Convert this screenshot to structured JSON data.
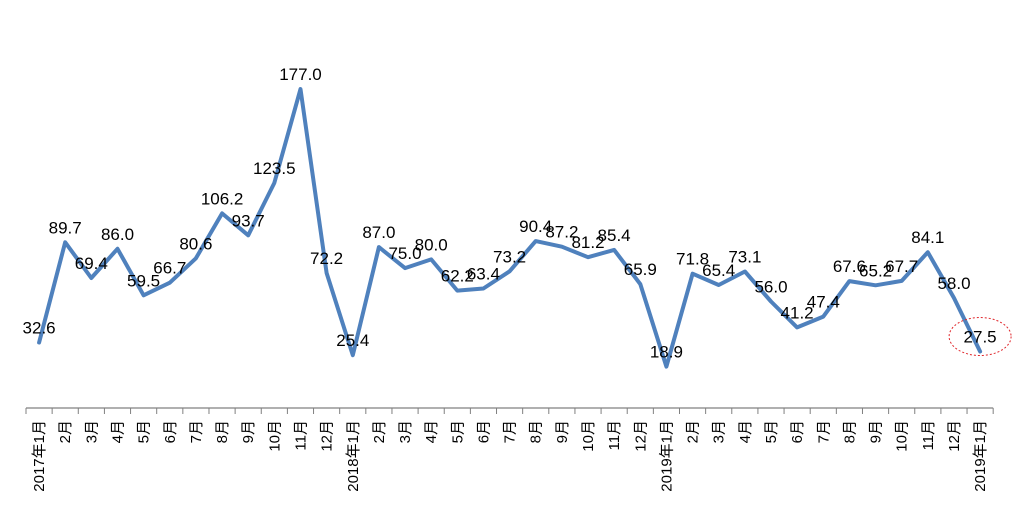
{
  "chart_data": {
    "type": "line",
    "categories": [
      "2017年1月",
      "2月",
      "3月",
      "4月",
      "5月",
      "6月",
      "7月",
      "8月",
      "9月",
      "10月",
      "11月",
      "12月",
      "2018年1月",
      "2月",
      "3月",
      "4月",
      "5月",
      "6月",
      "7月",
      "8月",
      "9月",
      "10月",
      "11月",
      "12月",
      "2019年1月",
      "2月",
      "3月",
      "4月",
      "5月",
      "6月",
      "7月",
      "8月",
      "9月",
      "10月",
      "11月",
      "12月",
      "2019年1月"
    ],
    "series": [
      {
        "values": [
          32.6,
          89.7,
          69.4,
          86.0,
          59.5,
          66.7,
          80.6,
          106.2,
          93.7,
          123.5,
          177.0,
          72.2,
          25.4,
          87.0,
          75.0,
          80.0,
          62.2,
          63.4,
          73.2,
          90.4,
          87.2,
          81.2,
          85.4,
          65.9,
          18.9,
          71.8,
          65.4,
          73.1,
          56.0,
          41.2,
          47.4,
          67.6,
          65.2,
          67.7,
          84.1,
          58.0,
          27.5
        ]
      }
    ],
    "data_labels": [
      "32.6",
      "89.7",
      "69.4",
      "86.0",
      "59.5",
      "66.7",
      "80.6",
      "106.2",
      "93.7",
      "123.5",
      "177.0",
      "72.2",
      "25.4",
      "87.0",
      "75.0",
      "80.0",
      "62.2",
      "63.4",
      "73.2",
      "90.4",
      "87.2",
      "81.2",
      "85.4",
      "65.9",
      "18.9",
      "71.8",
      "65.4",
      "73.1",
      "56.0",
      "41.2",
      "47.4",
      "67.6",
      "65.2",
      "67.7",
      "84.1",
      "58.0",
      "27.5"
    ],
    "highlight_index": 36,
    "ylim": [
      0,
      190
    ],
    "grid": false,
    "line_color": "#4F81BD",
    "highlight_color": "#E0262B",
    "axis_color": "#808080",
    "title": "",
    "xlabel": "",
    "ylabel": ""
  }
}
